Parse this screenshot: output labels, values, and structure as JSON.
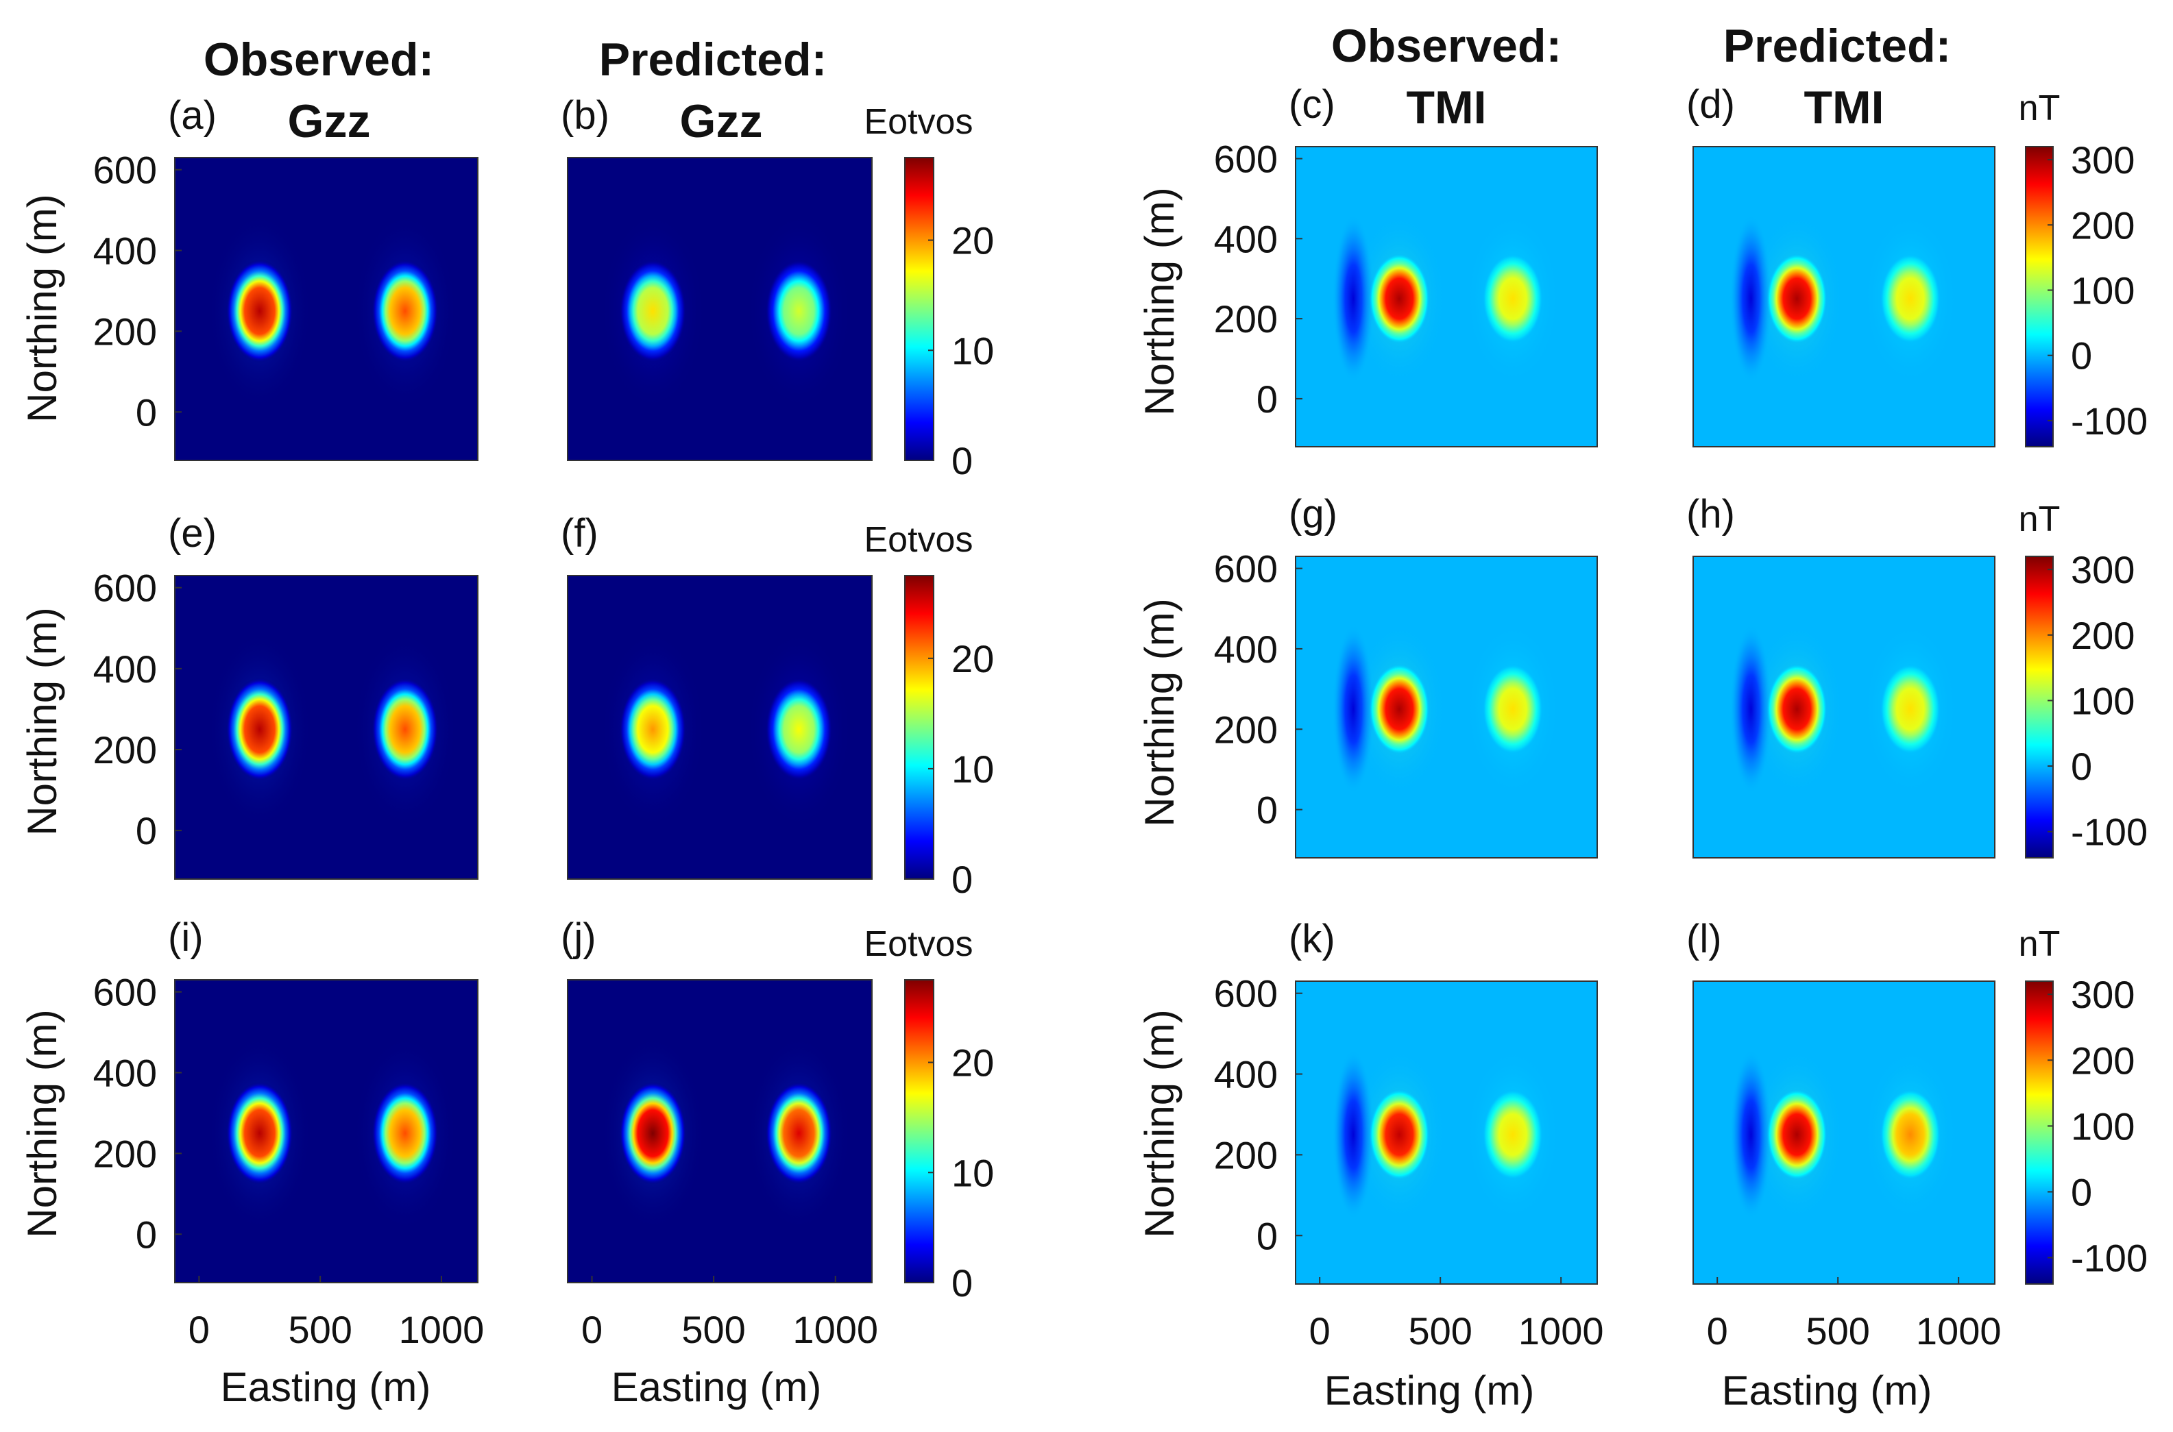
{
  "column_titles": [
    {
      "line1": "Observed:",
      "line2": "Gzz"
    },
    {
      "line1": "Predicted:",
      "line2": "Gzz"
    },
    {
      "line1": "Observed:",
      "line2": "TMI"
    },
    {
      "line1": "Predicted:",
      "line2": "TMI"
    }
  ],
  "axes": {
    "xlabel": "Easting (m)",
    "ylabel": "Northing (m)",
    "xticks": [
      0,
      500,
      1000
    ],
    "yticks": [
      0,
      200,
      400,
      600
    ],
    "xlim": [
      -100,
      1150
    ],
    "ylim": [
      -120,
      630
    ]
  },
  "colorbars": {
    "gzz": {
      "unit": "Eotvos",
      "ticks": [
        0,
        10,
        20
      ],
      "range": [
        0,
        27.5
      ]
    },
    "tmi": {
      "unit": "nT",
      "ticks": [
        -100,
        0,
        100,
        200,
        300
      ],
      "range": [
        -140,
        320
      ]
    }
  },
  "colors": {
    "jet": [
      "#00007f",
      "#0000ff",
      "#00ffff",
      "#ffff00",
      "#ff0000",
      "#7f0000"
    ]
  },
  "chart_data": [
    {
      "type": "heatmap",
      "panel": "(a)",
      "field": "gzz",
      "background": 0,
      "anomalies": [
        {
          "easting": 250,
          "northing": 250,
          "peak": 26,
          "type": "positive"
        },
        {
          "easting": 850,
          "northing": 250,
          "peak": 22,
          "type": "positive"
        }
      ]
    },
    {
      "type": "heatmap",
      "panel": "(b)",
      "field": "gzz",
      "background": 0,
      "anomalies": [
        {
          "easting": 250,
          "northing": 250,
          "peak": 18,
          "type": "positive"
        },
        {
          "easting": 850,
          "northing": 250,
          "peak": 16,
          "type": "positive"
        }
      ]
    },
    {
      "type": "heatmap",
      "panel": "(c)",
      "field": "tmi",
      "background": 0,
      "anomalies": [
        {
          "easting": 140,
          "northing": 250,
          "peak": -100,
          "type": "negative"
        },
        {
          "easting": 330,
          "northing": 250,
          "peak": 300,
          "type": "positive"
        },
        {
          "easting": 800,
          "northing": 250,
          "peak": 160,
          "type": "positive"
        }
      ]
    },
    {
      "type": "heatmap",
      "panel": "(d)",
      "field": "tmi",
      "background": 0,
      "anomalies": [
        {
          "easting": 140,
          "northing": 250,
          "peak": -100,
          "type": "negative"
        },
        {
          "easting": 330,
          "northing": 250,
          "peak": 300,
          "type": "positive"
        },
        {
          "easting": 800,
          "northing": 250,
          "peak": 160,
          "type": "positive"
        }
      ]
    },
    {
      "type": "heatmap",
      "panel": "(e)",
      "field": "gzz",
      "background": 0,
      "anomalies": [
        {
          "easting": 250,
          "northing": 250,
          "peak": 26,
          "type": "positive"
        },
        {
          "easting": 850,
          "northing": 250,
          "peak": 22,
          "type": "positive"
        }
      ]
    },
    {
      "type": "heatmap",
      "panel": "(f)",
      "field": "gzz",
      "background": 0,
      "anomalies": [
        {
          "easting": 250,
          "northing": 250,
          "peak": 20,
          "type": "positive"
        },
        {
          "easting": 850,
          "northing": 250,
          "peak": 17,
          "type": "positive"
        }
      ]
    },
    {
      "type": "heatmap",
      "panel": "(g)",
      "field": "tmi",
      "background": 0,
      "anomalies": [
        {
          "easting": 140,
          "northing": 250,
          "peak": -100,
          "type": "negative"
        },
        {
          "easting": 330,
          "northing": 250,
          "peak": 300,
          "type": "positive"
        },
        {
          "easting": 800,
          "northing": 250,
          "peak": 160,
          "type": "positive"
        }
      ]
    },
    {
      "type": "heatmap",
      "panel": "(h)",
      "field": "tmi",
      "background": 0,
      "anomalies": [
        {
          "easting": 140,
          "northing": 250,
          "peak": -100,
          "type": "negative"
        },
        {
          "easting": 330,
          "northing": 250,
          "peak": 300,
          "type": "positive"
        },
        {
          "easting": 800,
          "northing": 250,
          "peak": 160,
          "type": "positive"
        }
      ]
    },
    {
      "type": "heatmap",
      "panel": "(i)",
      "field": "gzz",
      "background": 0,
      "anomalies": [
        {
          "easting": 250,
          "northing": 250,
          "peak": 26,
          "type": "positive"
        },
        {
          "easting": 850,
          "northing": 250,
          "peak": 22,
          "type": "positive"
        }
      ]
    },
    {
      "type": "heatmap",
      "panel": "(j)",
      "field": "gzz",
      "background": 0,
      "anomalies": [
        {
          "easting": 250,
          "northing": 250,
          "peak": 28,
          "type": "positive"
        },
        {
          "easting": 850,
          "northing": 250,
          "peak": 25,
          "type": "positive"
        }
      ]
    },
    {
      "type": "heatmap",
      "panel": "(k)",
      "field": "tmi",
      "background": 0,
      "anomalies": [
        {
          "easting": 140,
          "northing": 250,
          "peak": -100,
          "type": "negative"
        },
        {
          "easting": 330,
          "northing": 250,
          "peak": 290,
          "type": "positive"
        },
        {
          "easting": 800,
          "northing": 250,
          "peak": 160,
          "type": "positive"
        }
      ]
    },
    {
      "type": "heatmap",
      "panel": "(l)",
      "field": "tmi",
      "background": 0,
      "anomalies": [
        {
          "easting": 140,
          "northing": 250,
          "peak": -100,
          "type": "negative"
        },
        {
          "easting": 330,
          "northing": 250,
          "peak": 300,
          "type": "positive"
        },
        {
          "easting": 800,
          "northing": 250,
          "peak": 200,
          "type": "positive"
        }
      ]
    }
  ]
}
